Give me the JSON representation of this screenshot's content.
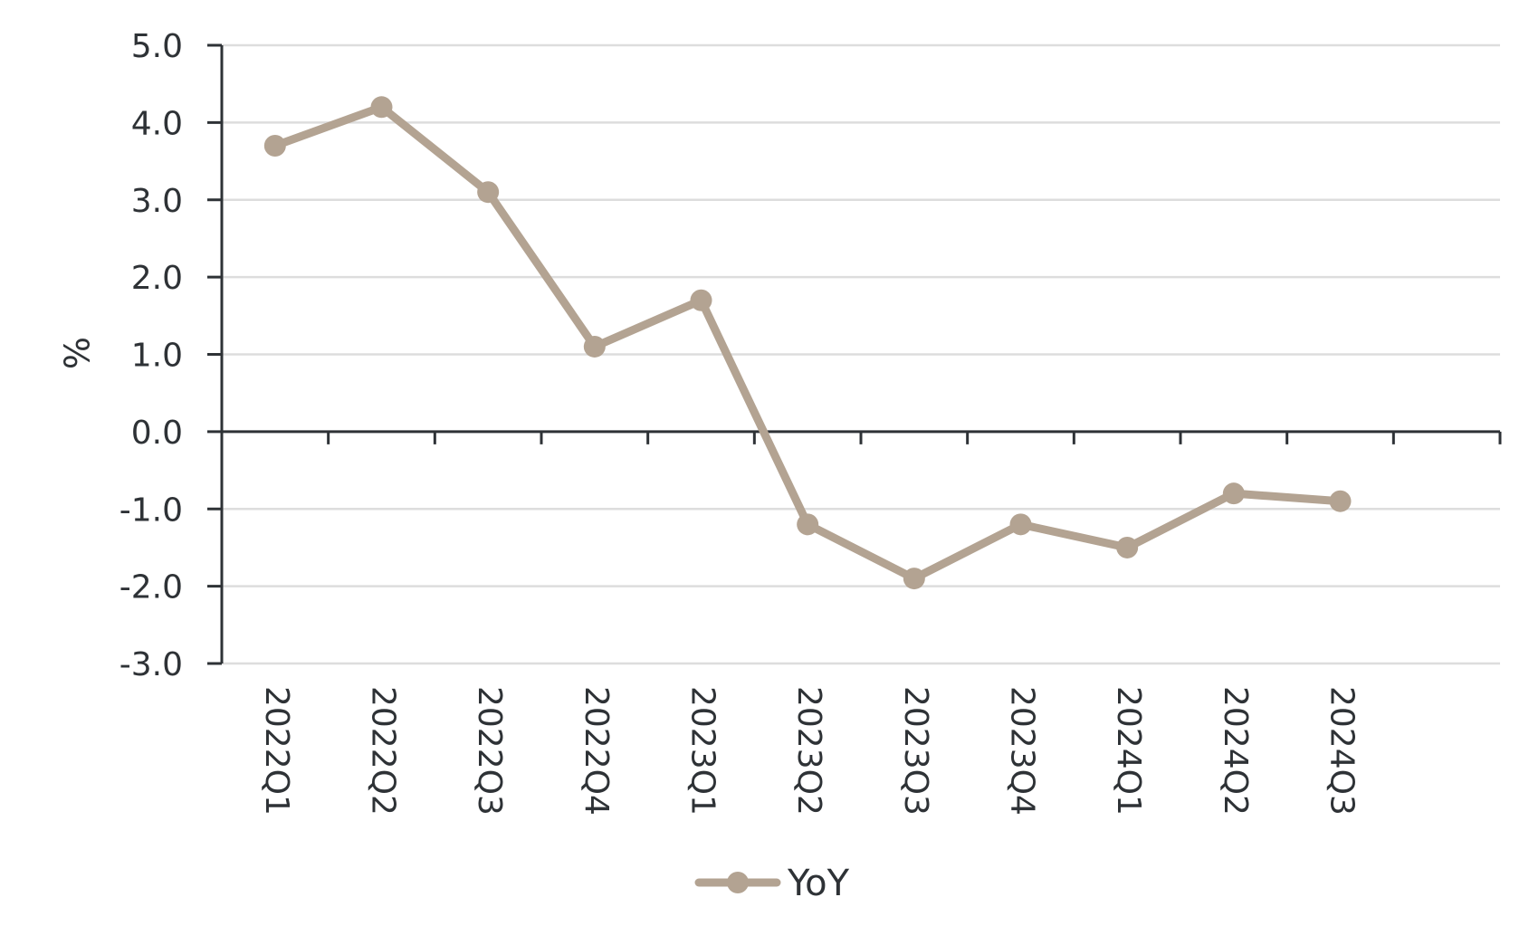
{
  "chart_data": {
    "type": "line",
    "title": "",
    "xlabel": "",
    "ylabel": "%",
    "categories": [
      "2022Q1",
      "2022Q2",
      "2022Q3",
      "2022Q4",
      "2023Q1",
      "2023Q2",
      "2023Q3",
      "2023Q4",
      "2024Q1",
      "2024Q2",
      "2024Q3"
    ],
    "series": [
      {
        "name": "YoY",
        "values": [
          3.7,
          4.2,
          3.1,
          1.1,
          1.7,
          -1.2,
          -1.9,
          -1.2,
          -1.5,
          -0.8,
          -0.9
        ],
        "color": "#b3a392"
      }
    ],
    "ylim": [
      -3.0,
      5.0
    ],
    "yticks": [
      "5.0",
      "4.0",
      "3.0",
      "2.0",
      "1.0",
      "0.0",
      "-1.0",
      "-2.0",
      "-3.0"
    ],
    "ytick_values": [
      5,
      4,
      3,
      2,
      1,
      0,
      -1,
      -2,
      -3
    ],
    "grid": true,
    "grid_color": "#dddddd",
    "axis_color": "#2e3236",
    "legend_position": "bottom-center"
  }
}
